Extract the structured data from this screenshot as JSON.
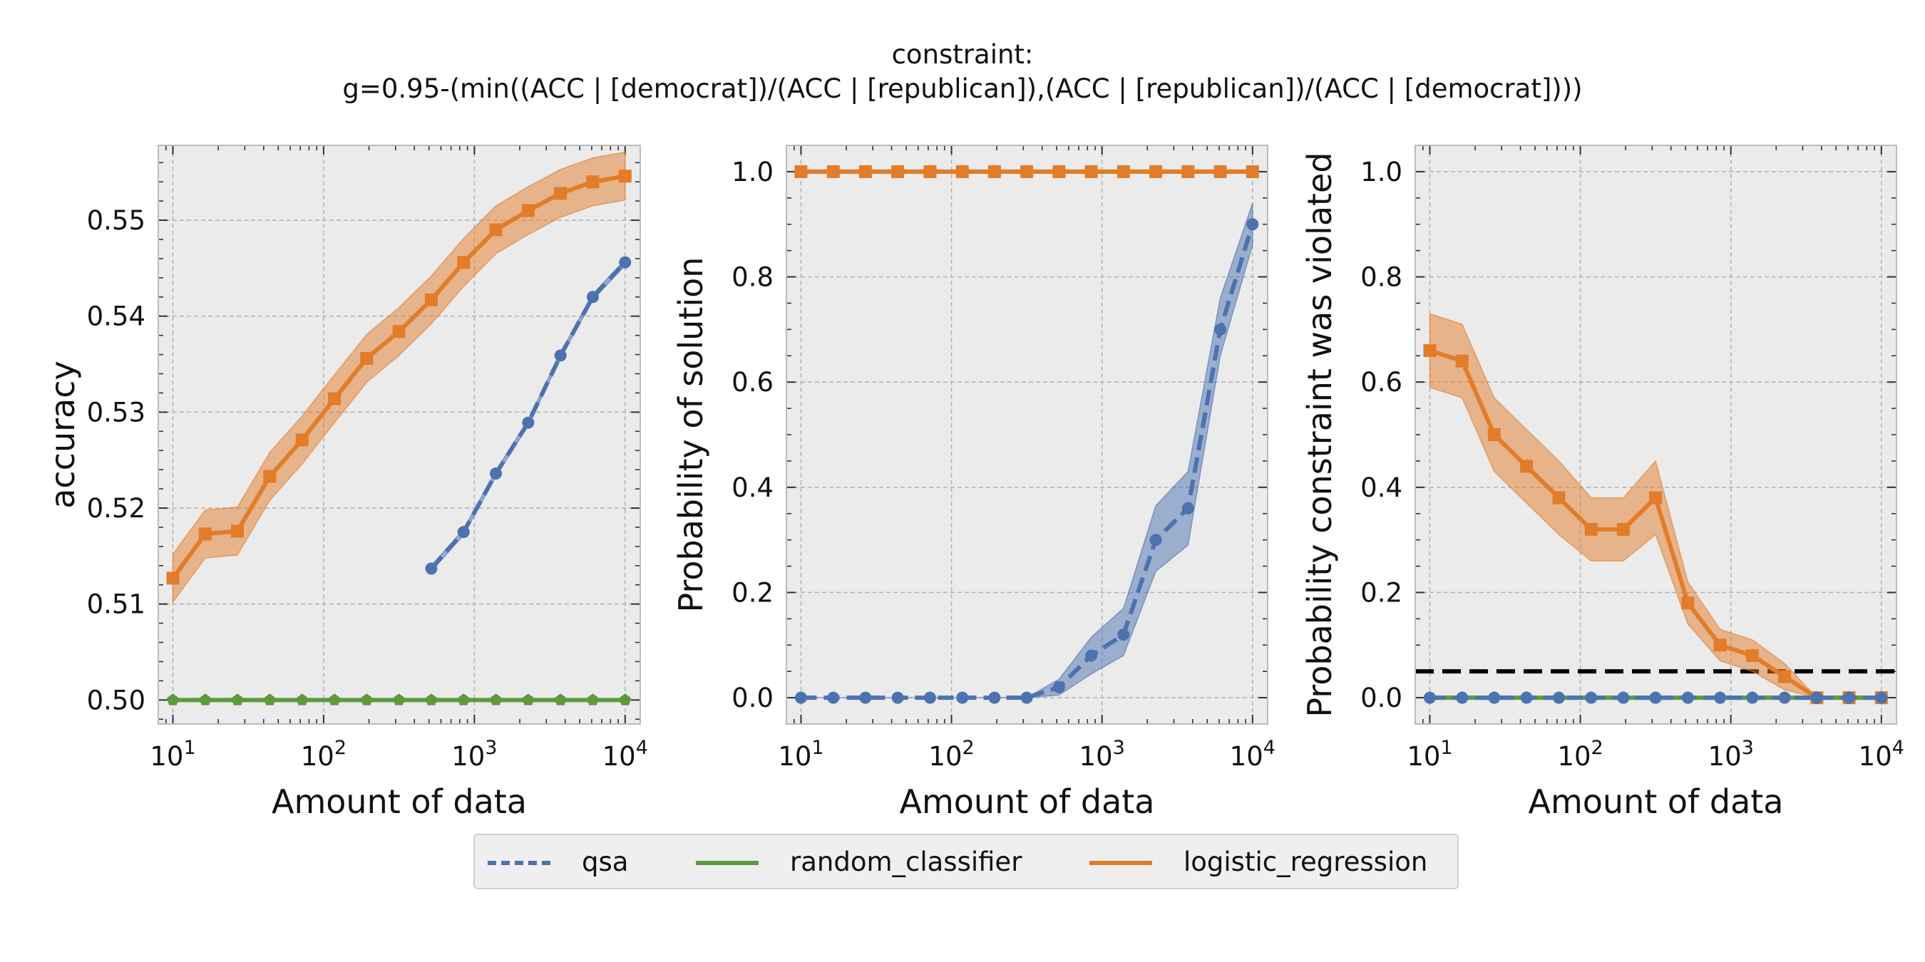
{
  "title": {
    "line1": "constraint:",
    "line2": "g=0.95-(min((ACC | [democrat])/(ACC | [republican]),(ACC | [republican])/(ACC | [democrat])))"
  },
  "colors": {
    "qsa": "#4c72b0",
    "random_classifier": "#5d9a3c",
    "logistic_regression": "#e27c29",
    "threshold": "#000000",
    "plot_bg": "#ebebeb"
  },
  "legend": {
    "qsa": "qsa",
    "random_classifier": "random_classifier",
    "logistic_regression": "logistic_regression"
  },
  "chart_data": [
    {
      "type": "line",
      "xscale": "log",
      "xlabel": "Amount of data",
      "ylabel": "accuracy",
      "xlim": [
        8,
        12600
      ],
      "ylim": [
        0.4975,
        0.5578
      ],
      "yticks": [
        0.5,
        0.51,
        0.52,
        0.53,
        0.54,
        0.55
      ],
      "ytick_labels": [
        "0.50",
        "0.51",
        "0.52",
        "0.53",
        "0.54",
        "0.55"
      ],
      "yminor_step": 0.002,
      "series": [
        {
          "name": "qsa",
          "x": [
            518,
            848,
            1389,
            2276,
            3728,
            6105,
            10000
          ],
          "y": [
            0.5137,
            0.5175,
            0.5236,
            0.5289,
            0.5359,
            0.542,
            0.5456
          ],
          "band": 0.0003
        },
        {
          "name": "random_classifier",
          "x": [
            10,
            16.4,
            26.8,
            43.9,
            72,
            118,
            193,
            316,
            518,
            848,
            1389,
            2276,
            3728,
            6105,
            10000
          ],
          "y": [
            0.5,
            0.5,
            0.5,
            0.5,
            0.5,
            0.5,
            0.5,
            0.5,
            0.5,
            0.5,
            0.5,
            0.5,
            0.5,
            0.5,
            0.5
          ],
          "band": 0
        },
        {
          "name": "logistic_regression",
          "x": [
            10,
            16.4,
            26.8,
            43.9,
            72,
            118,
            193,
            316,
            518,
            848,
            1389,
            2276,
            3728,
            6105,
            10000
          ],
          "y": [
            0.5127,
            0.5173,
            0.5176,
            0.5233,
            0.5271,
            0.5314,
            0.5356,
            0.5384,
            0.5417,
            0.5456,
            0.549,
            0.551,
            0.5528,
            0.554,
            0.5546
          ],
          "band": 0.0025
        }
      ]
    },
    {
      "type": "line",
      "xscale": "log",
      "xlabel": "Amount of data",
      "ylabel": "Probability of solution",
      "xlim": [
        8,
        12600
      ],
      "ylim": [
        -0.05,
        1.05
      ],
      "yticks": [
        0.0,
        0.2,
        0.4,
        0.6,
        0.8,
        1.0
      ],
      "ytick_labels": [
        "0.0",
        "0.2",
        "0.4",
        "0.6",
        "0.8",
        "1.0"
      ],
      "yminor_step": 0.05,
      "series": [
        {
          "name": "qsa",
          "x": [
            10,
            16.4,
            26.8,
            43.9,
            72,
            118,
            193,
            316,
            518,
            848,
            1389,
            2276,
            3728,
            6105,
            10000
          ],
          "y": [
            0,
            0,
            0,
            0,
            0,
            0,
            0,
            0,
            0.02,
            0.08,
            0.12,
            0.3,
            0.36,
            0.7,
            0.9
          ],
          "band_lo": [
            0,
            0,
            0,
            0,
            0,
            0,
            0,
            0,
            0.005,
            0.045,
            0.08,
            0.24,
            0.29,
            0.65,
            0.86
          ],
          "band_hi": [
            0,
            0,
            0,
            0,
            0,
            0,
            0,
            0,
            0.035,
            0.115,
            0.17,
            0.365,
            0.43,
            0.76,
            0.94
          ]
        },
        {
          "name": "random_classifier",
          "x": [
            10,
            16.4,
            26.8,
            43.9,
            72,
            118,
            193,
            316,
            518,
            848,
            1389,
            2276,
            3728,
            6105,
            10000
          ],
          "y": [
            1,
            1,
            1,
            1,
            1,
            1,
            1,
            1,
            1,
            1,
            1,
            1,
            1,
            1,
            1
          ],
          "band": 0
        },
        {
          "name": "logistic_regression",
          "x": [
            10,
            16.4,
            26.8,
            43.9,
            72,
            118,
            193,
            316,
            518,
            848,
            1389,
            2276,
            3728,
            6105,
            10000
          ],
          "y": [
            1,
            1,
            1,
            1,
            1,
            1,
            1,
            1,
            1,
            1,
            1,
            1,
            1,
            1,
            1
          ],
          "band": 0
        }
      ]
    },
    {
      "type": "line",
      "xscale": "log",
      "xlabel": "Amount of data",
      "ylabel": "Probability constraint was violated",
      "xlim": [
        8,
        12600
      ],
      "ylim": [
        -0.05,
        1.05
      ],
      "yticks": [
        0.0,
        0.2,
        0.4,
        0.6,
        0.8,
        1.0
      ],
      "ytick_labels": [
        "0.0",
        "0.2",
        "0.4",
        "0.6",
        "0.8",
        "1.0"
      ],
      "yminor_step": 0.05,
      "threshold": 0.05,
      "series": [
        {
          "name": "logistic_regression",
          "x": [
            10,
            16.4,
            26.8,
            43.9,
            72,
            118,
            193,
            316,
            518,
            848,
            1389,
            2276,
            3728,
            6105,
            10000
          ],
          "y": [
            0.66,
            0.64,
            0.5,
            0.44,
            0.38,
            0.32,
            0.32,
            0.38,
            0.18,
            0.1,
            0.08,
            0.04,
            0,
            0,
            0
          ],
          "band_lo": [
            0.59,
            0.57,
            0.43,
            0.37,
            0.31,
            0.26,
            0.26,
            0.31,
            0.14,
            0.07,
            0.05,
            0.015,
            0,
            0,
            0
          ],
          "band_hi": [
            0.73,
            0.71,
            0.57,
            0.51,
            0.45,
            0.38,
            0.38,
            0.45,
            0.22,
            0.13,
            0.11,
            0.065,
            0,
            0,
            0
          ]
        },
        {
          "name": "random_classifier",
          "x": [
            10,
            16.4,
            26.8,
            43.9,
            72,
            118,
            193,
            316,
            518,
            848,
            1389,
            2276,
            3728,
            6105,
            10000
          ],
          "y": [
            0,
            0,
            0,
            0,
            0,
            0,
            0,
            0,
            0,
            0,
            0,
            0,
            0,
            0,
            0
          ],
          "band": 0
        },
        {
          "name": "qsa",
          "x": [
            10,
            16.4,
            26.8,
            43.9,
            72,
            118,
            193,
            316,
            518,
            848,
            1389,
            2276,
            3728,
            6105,
            10000
          ],
          "y": [
            0,
            0,
            0,
            0,
            0,
            0,
            0,
            0,
            0,
            0,
            0,
            0,
            0,
            0,
            0
          ],
          "band": 0
        }
      ]
    }
  ]
}
